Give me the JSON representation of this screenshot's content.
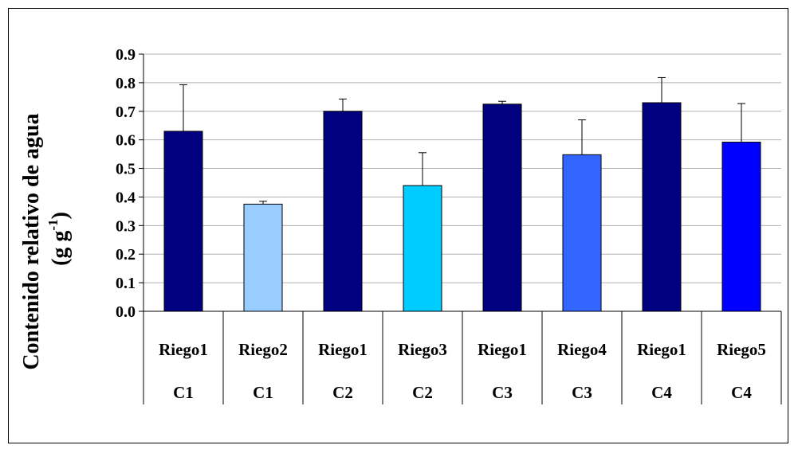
{
  "chart_data": {
    "type": "bar",
    "title": "",
    "ylabel_line1": "Contenido relativo de agua",
    "ylabel_line2_prefix": "(g g",
    "ylabel_line2_sup": "-1",
    "ylabel_line2_suffix": ")",
    "ylim": [
      0,
      0.9
    ],
    "yticks": [
      "0.0",
      "0.1",
      "0.2",
      "0.3",
      "0.4",
      "0.5",
      "0.6",
      "0.7",
      "0.8",
      "0.9"
    ],
    "grid": true,
    "categories_level1": [
      "Riego1",
      "Riego2",
      "Riego1",
      "Riego3",
      "Riego1",
      "Riego4",
      "Riego1",
      "Riego5"
    ],
    "categories_level2": [
      "C1",
      "C1",
      "C2",
      "C2",
      "C3",
      "C3",
      "C4",
      "C4"
    ],
    "values": [
      0.63,
      0.375,
      0.7,
      0.44,
      0.725,
      0.548,
      0.73,
      0.592
    ],
    "error_plus": [
      0.163,
      0.01,
      0.043,
      0.115,
      0.01,
      0.122,
      0.088,
      0.135
    ],
    "colors": [
      "#000080",
      "#99ccff",
      "#000080",
      "#00ccff",
      "#000080",
      "#3366ff",
      "#000080",
      "#0000ff"
    ]
  }
}
